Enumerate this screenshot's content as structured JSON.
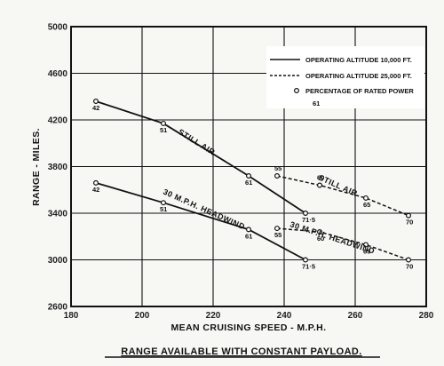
{
  "chart_data": {
    "type": "line",
    "xlabel": "MEAN CRUISING SPEED - M.P.H.",
    "ylabel": "RANGE - MILES.",
    "caption": "RANGE AVAILABLE WITH CONSTANT PAYLOAD.",
    "xlim": [
      180,
      280
    ],
    "ylim": [
      2600,
      5000
    ],
    "x_ticks": [
      180,
      200,
      220,
      240,
      260,
      280
    ],
    "y_ticks": [
      2600,
      3000,
      3400,
      3800,
      4200,
      4600,
      5000
    ],
    "grid": true,
    "legend_position": "top-right",
    "legend": [
      {
        "label": "OPERATING ALTITUDE 10,000 FT.",
        "style": "solid"
      },
      {
        "label": "OPERATING ALTITUDE 25,000 FT.",
        "style": "dashed"
      },
      {
        "label": "PERCENTAGE OF RATED POWER",
        "style": "marker",
        "sample": "61"
      }
    ],
    "series": [
      {
        "name": "STILL AIR",
        "altitude": "10,000 FT.",
        "style": "solid",
        "x": [
          187,
          206,
          230,
          246
        ],
        "y": [
          4360,
          4170,
          3720,
          3400
        ],
        "point_labels": [
          "42",
          "51",
          "61",
          "71·5"
        ]
      },
      {
        "name": "30 M.P.H. HEADWIND",
        "altitude": "10,000 FT.",
        "style": "solid",
        "x": [
          187,
          206,
          230,
          246
        ],
        "y": [
          3660,
          3490,
          3260,
          3000
        ],
        "point_labels": [
          "42",
          "51",
          "61",
          "71·5"
        ]
      },
      {
        "name": "STILL AIR",
        "altitude": "25,000 FT.",
        "style": "dashed",
        "x": [
          238,
          250,
          263,
          275
        ],
        "y": [
          3720,
          3640,
          3530,
          3380
        ],
        "point_labels": [
          "55",
          "60",
          "65",
          "70"
        ]
      },
      {
        "name": "30 M.P.H. HEADWIND",
        "altitude": "25,000 FT.",
        "style": "dashed",
        "x": [
          238,
          250,
          263,
          275
        ],
        "y": [
          3270,
          3240,
          3130,
          3000
        ],
        "point_labels": [
          "55",
          "60",
          "65",
          "70"
        ]
      }
    ],
    "annotations": [
      "STILL AIR",
      "30 M.P.H. HEADWIND",
      "STILL AIR",
      "30 M.P.H. HEADWIND"
    ]
  }
}
